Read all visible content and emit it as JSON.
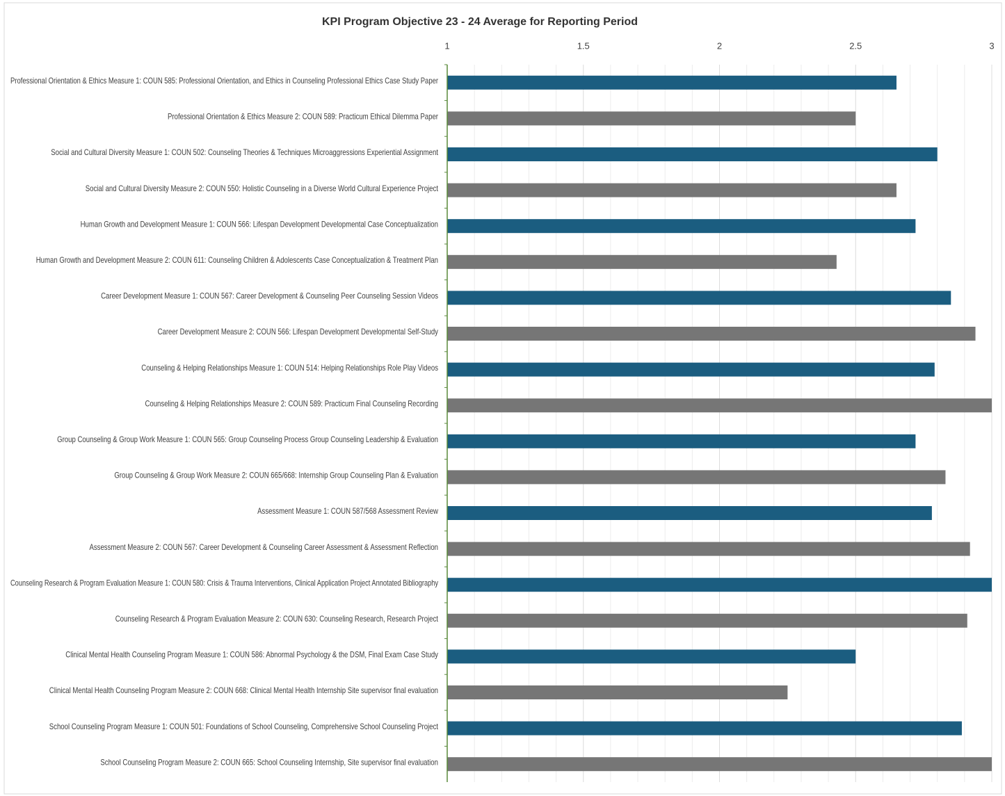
{
  "chart_data": {
    "type": "bar",
    "orientation": "horizontal",
    "title": "KPI Program Objective 23 - 24 Average for Reporting Period",
    "categories": [
      "Professional Orientation & Ethics Measure 1: COUN 585: Professional Orientation, and Ethics in Counseling Professional Ethics Case Study Paper",
      "Professional Orientation & Ethics Measure 2: COUN 589: Practicum Ethical Dilemma Paper",
      "Social and Cultural Diversity Measure 1: COUN 502: Counseling Theories & Techniques Microaggressions Experiential Assignment",
      "Social and Cultural Diversity Measure 2: COUN 550: Holistic Counseling in a Diverse World Cultural Experience Project",
      "Human Growth and Development Measure 1: COUN 566: Lifespan Development Developmental Case Conceptualization",
      "Human Growth and Development Measure 2: COUN 611: Counseling Children & Adolescents Case Conceptualization & Treatment Plan",
      "Career Development Measure 1: COUN 567: Career Development & Counseling Peer Counseling Session Videos",
      "Career Development Measure 2: COUN 566: Lifespan Development Developmental Self-Study",
      "Counseling & Helping Relationships Measure 1: COUN 514: Helping Relationships Role Play Videos",
      "Counseling & Helping Relationships Measure 2: COUN 589: Practicum Final Counseling Recording",
      "Group Counseling & Group Work Measure 1: COUN 565: Group Counseling Process Group Counseling Leadership & Evaluation",
      "Group Counseling & Group Work Measure 2: COUN 665/668: Internship Group Counseling Plan & Evaluation",
      "Assessment Measure 1: COUN 587/568 Assessment Review",
      "Assessment Measure 2: COUN 567: Career Development & Counseling Career Assessment & Assessment Reflection",
      "Counseling Research & Program Evaluation Measure 1: COUN 580: Crisis & Trauma Interventions, Clinical Application Project Annotated Bibliography",
      "Counseling Research & Program Evaluation Measure 2: COUN 630: Counseling Research, Research Project",
      "Clinical Mental Health Counseling Program Measure 1: COUN 586: Abnormal Psychology & the DSM, Final Exam Case Study",
      "Clinical Mental Health Counseling Program Measure 2: COUN 668: Clinical Mental Health Internship Site supervisor final evaluation",
      "School Counseling Program Measure 1: COUN 501: Foundations of School Counseling, Comprehensive School Counseling Project",
      "School Counseling Program Measure 2: COUN 665: School Counseling Internship, Site supervisor final evaluation"
    ],
    "values": [
      2.65,
      2.5,
      2.8,
      2.65,
      2.72,
      2.43,
      2.85,
      2.94,
      2.79,
      3,
      2.72,
      2.83,
      2.78,
      2.92,
      3,
      2.91,
      2.5,
      2.25,
      2.89,
      3
    ],
    "colors": [
      "#1b5d80",
      "#767676",
      "#1b5d80",
      "#767676",
      "#1b5d80",
      "#767676",
      "#1b5d80",
      "#767676",
      "#1b5d80",
      "#767676",
      "#1b5d80",
      "#767676",
      "#1b5d80",
      "#767676",
      "#1b5d80",
      "#767676",
      "#1b5d80",
      "#767676",
      "#1b5d80",
      "#767676"
    ],
    "xlim": [
      1,
      3
    ],
    "xticks": [
      1,
      1.5,
      2,
      2.5,
      3
    ],
    "minor_xticks": [
      1.1,
      1.2,
      1.3,
      1.4,
      1.6,
      1.7,
      1.8,
      1.9,
      2.1,
      2.2,
      2.3,
      2.4,
      2.6,
      2.7,
      2.8,
      2.9
    ],
    "grid": true
  }
}
